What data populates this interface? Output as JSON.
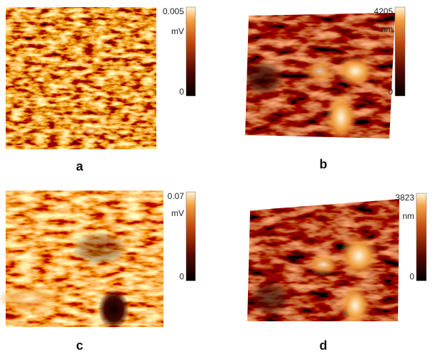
{
  "panels": [
    {
      "label": "a",
      "colorbar": {
        "max": "0.005",
        "unit": "mV",
        "min": "0"
      }
    },
    {
      "label": "b",
      "colorbar": {
        "max": "4205",
        "unit": "nm",
        "min": "0"
      }
    },
    {
      "label": "c",
      "colorbar": {
        "max": "0.07",
        "unit": "mV",
        "min": "0"
      }
    },
    {
      "label": "d",
      "colorbar": {
        "max": "3823",
        "unit": "nm",
        "min": "0"
      }
    }
  ]
}
